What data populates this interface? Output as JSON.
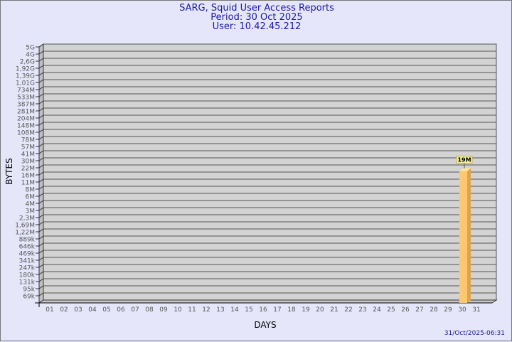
{
  "chart_data": {
    "type": "bar",
    "title": "SARG, Squid User Access Reports",
    "subtitle": [
      "Period: 30 Oct 2025",
      "User: 10.42.45.212"
    ],
    "xlabel": "DAYS",
    "ylabel": "BYTES",
    "y_scale": "log",
    "y_ticks": [
      "5G",
      "4G",
      "2,6G",
      "1,92G",
      "1,39G",
      "1,01G",
      "734M",
      "533M",
      "387M",
      "281M",
      "204M",
      "148M",
      "108M",
      "78M",
      "57M",
      "41M",
      "30M",
      "22M",
      "16M",
      "11M",
      "8M",
      "6M",
      "4M",
      "3M",
      "2,3M",
      "1,69M",
      "1,22M",
      "889k",
      "646k",
      "469k",
      "341k",
      "247k",
      "180k",
      "131k",
      "95k",
      "69k"
    ],
    "categories": [
      "01",
      "02",
      "03",
      "04",
      "05",
      "06",
      "07",
      "08",
      "09",
      "10",
      "11",
      "12",
      "13",
      "14",
      "15",
      "16",
      "17",
      "18",
      "19",
      "20",
      "21",
      "22",
      "23",
      "24",
      "25",
      "26",
      "27",
      "28",
      "29",
      "30",
      "31"
    ],
    "bars": [
      {
        "day": "30",
        "value": "19M"
      }
    ],
    "grid": true,
    "bar_color": "#ffc86e",
    "footer": "31/Oct/2025-06:31"
  }
}
